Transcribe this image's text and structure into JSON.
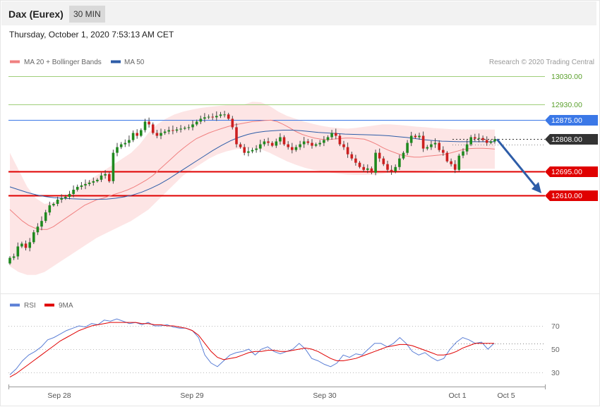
{
  "header": {
    "instrument": "Dax (Eurex)",
    "timeframe": "30 MIN",
    "datetime": "Thursday, October 1, 2020 7:53:13 AM CET"
  },
  "legend": {
    "items": [
      {
        "label": "MA 20 + Bollinger Bands",
        "color": "#f08080"
      },
      {
        "label": "MA 50",
        "color": "#2e5da8"
      }
    ],
    "credit": "Research © 2020 Trading Central"
  },
  "rsi_legend": {
    "items": [
      {
        "label": "RSI",
        "color": "#5b7fd6"
      },
      {
        "label": "9MA",
        "color": "#e00000"
      }
    ]
  },
  "colors": {
    "up_candle": "#1f8a1f",
    "down_candle": "#cc1f1f",
    "band_fill": "#fde0e0",
    "ma20": "#f08080",
    "ma50": "#2e5da8",
    "resistance_green": "#9fcf7a",
    "resistance_blue": "#3b78e7",
    "support_red": "#e00000",
    "current": "#333333",
    "arrow": "#2e5da8"
  },
  "chart_data": [
    {
      "type": "candlestick",
      "title": "",
      "ylim": [
        12350,
        13060
      ],
      "levels": [
        {
          "value": 13030,
          "label": "13030.00",
          "kind": "resistance",
          "color": "#9fcf7a",
          "label_style": "text",
          "text_color": "#5aa02c"
        },
        {
          "value": 12930,
          "label": "12930.00",
          "kind": "resistance",
          "color": "#9fcf7a",
          "label_style": "text",
          "text_color": "#5aa02c"
        },
        {
          "value": 12875,
          "label": "12875.00",
          "kind": "pivot",
          "color": "#3b78e7",
          "label_style": "tag",
          "text_color": "#ffffff"
        },
        {
          "value": 12808,
          "label": "12808.00",
          "kind": "current",
          "color": "#333333",
          "label_style": "tag",
          "text_color": "#ffffff"
        },
        {
          "value": 12695,
          "label": "12695.00",
          "kind": "support",
          "color": "#e00000",
          "label_style": "tag",
          "text_color": "#ffffff"
        },
        {
          "value": 12610,
          "label": "12610.00",
          "kind": "support",
          "color": "#e00000",
          "label_style": "tag",
          "text_color": "#ffffff"
        }
      ],
      "forecast_arrow": {
        "from_value": 12808,
        "to_value": 12610
      },
      "close_path": [
        12390,
        12395,
        12430,
        12440,
        12425,
        12445,
        12480,
        12500,
        12520,
        12550,
        12575,
        12580,
        12595,
        12600,
        12605,
        12615,
        12630,
        12640,
        12645,
        12650,
        12655,
        12660,
        12665,
        12680,
        12685,
        12660,
        12760,
        12780,
        12790,
        12795,
        12805,
        12830,
        12820,
        12840,
        12870,
        12860,
        12830,
        12820,
        12830,
        12835,
        12840,
        12838,
        12842,
        12845,
        12848,
        12850,
        12860,
        12870,
        12880,
        12885,
        12887,
        12885,
        12890,
        12895,
        12895,
        12880,
        12850,
        12790,
        12780,
        12760,
        12765,
        12770,
        12775,
        12790,
        12800,
        12795,
        12785,
        12800,
        12815,
        12790,
        12780,
        12770,
        12780,
        12790,
        12800,
        12795,
        12785,
        12790,
        12795,
        12805,
        12815,
        12830,
        12820,
        12790,
        12780,
        12755,
        12740,
        12725,
        12710,
        12700,
        12705,
        12690,
        12760,
        12740,
        12720,
        12700,
        12695,
        12710,
        12740,
        12760,
        12795,
        12820,
        12815,
        12820,
        12775,
        12780,
        12790,
        12795,
        12770,
        12760,
        12730,
        12720,
        12700,
        12750,
        12765,
        12790,
        12815,
        12810,
        12812,
        12805,
        12795,
        12800,
        12808
      ],
      "ma20_path": [
        12560,
        12540,
        12520,
        12505,
        12495,
        12490,
        12490,
        12500,
        12515,
        12530,
        12545,
        12560,
        12575,
        12585,
        12595,
        12600,
        12608,
        12615,
        12622,
        12630,
        12640,
        12652,
        12665,
        12680,
        12700,
        12720,
        12740,
        12760,
        12778,
        12795,
        12810,
        12820,
        12830,
        12838,
        12845,
        12852,
        12858,
        12862,
        12866,
        12870,
        12872,
        12874,
        12875,
        12870,
        12860,
        12848,
        12835,
        12825,
        12818,
        12812,
        12808,
        12806,
        12808,
        12810,
        12812,
        12812,
        12810,
        12808,
        12800,
        12790,
        12778,
        12768,
        12760,
        12752,
        12748,
        12745,
        12745,
        12748,
        12750,
        12752,
        12755,
        12760,
        12766,
        12772,
        12775,
        12776,
        12776,
        12775,
        12773
      ],
      "ma50_path": [
        12640,
        12630,
        12620,
        12612,
        12606,
        12602,
        12600,
        12598,
        12597,
        12596,
        12596,
        12597,
        12600,
        12605,
        12612,
        12622,
        12635,
        12650,
        12668,
        12688,
        12708,
        12728,
        12748,
        12768,
        12786,
        12802,
        12815,
        12825,
        12832,
        12836,
        12838,
        12840,
        12840,
        12838,
        12835,
        12832,
        12830,
        12828,
        12826,
        12825,
        12824,
        12823,
        12822,
        12820,
        12817,
        12814,
        12810,
        12806,
        12803,
        12801,
        12800,
        12799,
        12799,
        12799,
        12799,
        12799
      ],
      "band_upper_path": [
        12760,
        12700,
        12640,
        12600,
        12580,
        12585,
        12600,
        12620,
        12640,
        12660,
        12680,
        12700,
        12720,
        12740,
        12760,
        12790,
        12830,
        12860,
        12880,
        12895,
        12905,
        12912,
        12918,
        12922,
        12925,
        12928,
        12930,
        12930,
        12940,
        12938,
        12925,
        12905,
        12890,
        12880,
        12870,
        12862,
        12855,
        12850,
        12847,
        12845,
        12848,
        12852,
        12856,
        12860,
        12860,
        12858,
        12855,
        12852,
        12850,
        12847,
        12845,
        12843,
        12842,
        12842,
        12842,
        12842,
        12842
      ],
      "band_lower_path": [
        12360,
        12340,
        12330,
        12330,
        12340,
        12360,
        12380,
        12400,
        12420,
        12440,
        12460,
        12475,
        12490,
        12505,
        12520,
        12540,
        12560,
        12590,
        12620,
        12650,
        12680,
        12700,
        12720,
        12740,
        12755,
        12765,
        12772,
        12776,
        12776,
        12772,
        12760,
        12745,
        12730,
        12718,
        12708,
        12700,
        12695,
        12690,
        12686,
        12683,
        12682,
        12682,
        12683,
        12686,
        12690,
        12692,
        12694,
        12696,
        12697,
        12698,
        12700,
        12702,
        12703,
        12704,
        12704,
        12704,
        12704
      ]
    },
    {
      "type": "line",
      "title": "",
      "ylim": [
        20,
        80
      ],
      "yticks": [
        30,
        50,
        70
      ],
      "xticks": [
        "Sep 28",
        "Sep 29",
        "Sep 30",
        "Oct 1",
        "Oct 5"
      ],
      "series": [
        {
          "name": "RSI",
          "values": [
            28,
            33,
            40,
            45,
            48,
            52,
            58,
            60,
            63,
            66,
            68,
            70,
            69,
            72,
            71,
            75,
            74,
            76,
            74,
            72,
            73,
            71,
            73,
            70,
            70,
            71,
            69,
            68,
            68,
            66,
            60,
            45,
            38,
            35,
            40,
            45,
            47,
            48,
            50,
            45,
            50,
            52,
            48,
            46,
            48,
            50,
            55,
            50,
            42,
            40,
            37,
            35,
            38,
            45,
            43,
            46,
            45,
            50,
            55,
            55,
            52,
            55,
            60,
            55,
            48,
            45,
            47,
            43,
            40,
            42,
            50,
            56,
            60,
            58,
            55,
            56,
            50,
            55
          ]
        },
        {
          "name": "9MA",
          "values": [
            26,
            29,
            33,
            37,
            41,
            45,
            49,
            53,
            57,
            60,
            63,
            66,
            68,
            70,
            71,
            72,
            73,
            73,
            73,
            73,
            73,
            72,
            72,
            71,
            71,
            70,
            70,
            69,
            68,
            66,
            62,
            55,
            48,
            43,
            41,
            42,
            43,
            45,
            47,
            48,
            48,
            49,
            49,
            48,
            48,
            49,
            50,
            51,
            50,
            48,
            45,
            42,
            40,
            40,
            41,
            42,
            44,
            46,
            48,
            50,
            52,
            53,
            54,
            54,
            53,
            51,
            49,
            47,
            45,
            45,
            46,
            48,
            51,
            53,
            55,
            55,
            55,
            55
          ]
        }
      ]
    }
  ]
}
